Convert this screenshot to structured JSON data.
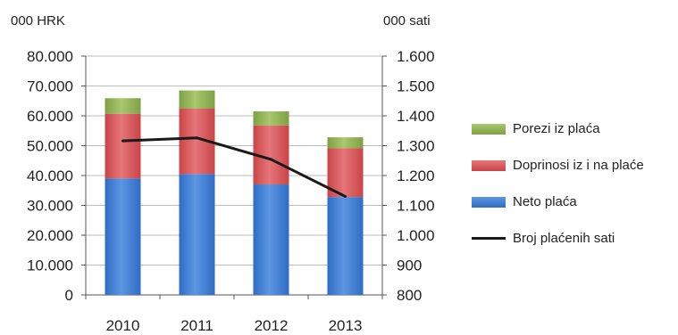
{
  "chart_data": {
    "type": "bar",
    "stacked": true,
    "categories": [
      "2010",
      "2011",
      "2012",
      "2013"
    ],
    "series": [
      {
        "name": "Neto plaća",
        "kind": "bar",
        "axis": "left",
        "color": "#3f7fd4",
        "values": [
          39000,
          40500,
          37000,
          32800
        ]
      },
      {
        "name": "Doprinosi iz i na plaće",
        "kind": "bar",
        "axis": "left",
        "color": "#d9575b",
        "values": [
          21700,
          22000,
          19800,
          16400
        ]
      },
      {
        "name": "Porezi iz plaća",
        "kind": "bar",
        "axis": "left",
        "color": "#8fb253",
        "values": [
          5200,
          6000,
          4700,
          3600
        ]
      },
      {
        "name": "Broj plaćenih sati",
        "kind": "line",
        "axis": "right",
        "color": "#1a1a1a",
        "values": [
          1316,
          1326,
          1254,
          1130
        ]
      }
    ],
    "ylabel_left_unit": "000 HRK",
    "ylabel_right_unit": "000 sati",
    "ylim_left": [
      0,
      80000
    ],
    "ylim_right": [
      800,
      1600
    ],
    "yticks_left": [
      "0",
      "10.000",
      "20.000",
      "30.000",
      "40.000",
      "50.000",
      "60.000",
      "70.000",
      "80.000"
    ],
    "yticks_right": [
      "800",
      "900",
      "1.000",
      "1.100",
      "1.200",
      "1.300",
      "1.400",
      "1.500",
      "1.600"
    ],
    "grid": true,
    "legend_position": "right",
    "legend": [
      {
        "label": "Porezi iz plaća",
        "kind": "bar",
        "color": "#8fb253"
      },
      {
        "label": "Doprinosi iz i na plaće",
        "kind": "bar",
        "color": "#d9575b"
      },
      {
        "label": "Neto plaća",
        "kind": "bar",
        "color": "#3f7fd4"
      },
      {
        "label": "Broj plaćenih sati",
        "kind": "line",
        "color": "#1a1a1a"
      }
    ]
  }
}
